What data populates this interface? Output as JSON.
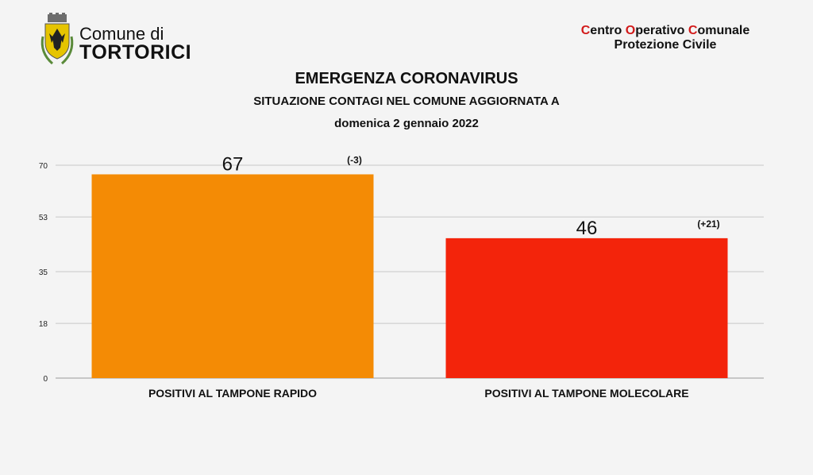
{
  "header": {
    "logo_line1": "Comune di",
    "logo_line2": "TORTORICI",
    "coc": {
      "line1_parts": [
        {
          "initial": "C",
          "rest": "entro "
        },
        {
          "initial": "O",
          "rest": "perativo "
        },
        {
          "initial": "C",
          "rest": "omunale"
        }
      ],
      "line2": "Protezione Civile"
    }
  },
  "titles": {
    "title": "EMERGENZA CORONAVIRUS",
    "subtitle": "SITUAZIONE CONTAGI NEL COMUNE AGGIORNATA A",
    "date": "domenica 2 gennaio 2022"
  },
  "colors": {
    "bar_rapido": "#f48b05",
    "bar_molecolare": "#f3240b",
    "grid": "#c8c8c8",
    "accent": "#d21a1a"
  },
  "chart_data": {
    "type": "bar",
    "categories": [
      "POSITIVI AL TAMPONE RAPIDO",
      "POSITIVI AL TAMPONE MOLECOLARE"
    ],
    "values": [
      67,
      46
    ],
    "value_labels": [
      "67",
      "46"
    ],
    "change_labels": [
      "(-3)",
      "(+21)"
    ],
    "bar_colors": [
      "#f48b05",
      "#f3240b"
    ],
    "yticks": [
      0,
      18,
      35,
      53,
      70
    ],
    "ylim": [
      0,
      70
    ],
    "grid": true,
    "legend": "none"
  }
}
